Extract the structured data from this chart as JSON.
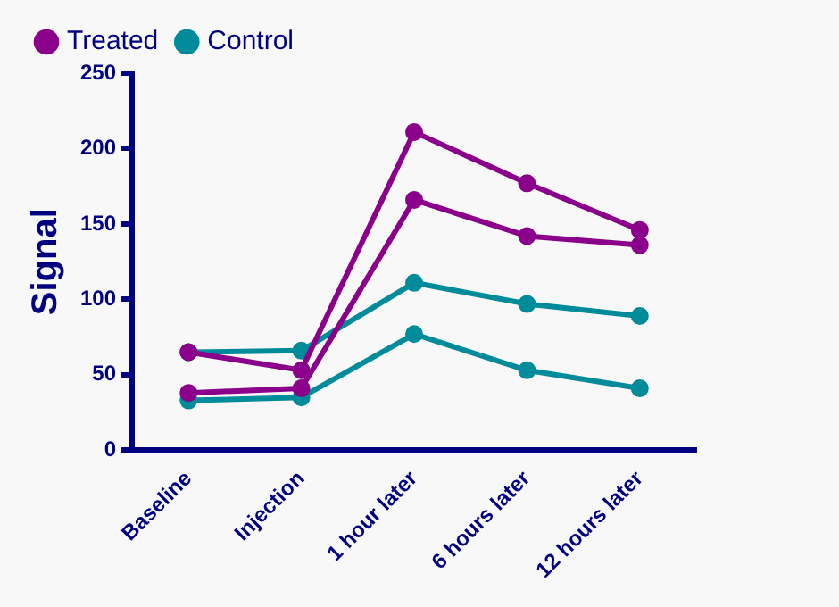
{
  "chart_data": {
    "type": "line",
    "ylabel": "Signal",
    "categories": [
      "Baseline",
      "Injection",
      "1 hour later",
      "6 hours later",
      "12 hours later"
    ],
    "series": [
      {
        "name": "Control",
        "color": "#008b9b",
        "values": [
          65,
          66,
          111,
          97,
          89
        ]
      },
      {
        "color": "#008b9b",
        "values": [
          33,
          35,
          77,
          53,
          41
        ]
      },
      {
        "name": "Treated",
        "color": "#8b008b",
        "values": [
          65,
          53,
          211,
          177,
          146
        ]
      },
      {
        "color": "#8b008b",
        "values": [
          38,
          41,
          166,
          142,
          136
        ]
      }
    ],
    "ylim": [
      0,
      250
    ],
    "yticks": [
      0,
      50,
      100,
      150,
      200,
      250
    ],
    "grid": false,
    "legend": "top left",
    "marker": "circle",
    "line_style": "solid"
  }
}
